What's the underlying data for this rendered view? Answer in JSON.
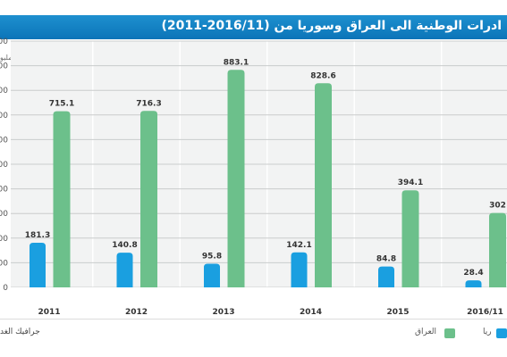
{
  "chart_data": {
    "type": "bar",
    "title": "ادرات الوطنية الى العراق وسوريا من (2016/11-2011)",
    "unit_label": "مليو",
    "categories": [
      "2011",
      "2012",
      "2013",
      "2014",
      "2015",
      "2016/11"
    ],
    "series": [
      {
        "name": "سوريا",
        "color": "#1a9fe0",
        "values": [
          181.3,
          140.8,
          95.8,
          142.1,
          84.8,
          28.4
        ],
        "labels": [
          "181.3",
          "140.8",
          "95.8",
          "142.1",
          "84.8",
          "28.4"
        ]
      },
      {
        "name": "العراق",
        "color": "#6cc08b",
        "values": [
          715.1,
          716.3,
          883.1,
          828.6,
          394.1,
          302
        ],
        "labels": [
          "715.1",
          "716.3",
          "883.1",
          "828.6",
          "394.1",
          "302"
        ]
      }
    ],
    "ylim": [
      0,
      1000
    ],
    "ytick_step": 100,
    "grid": true
  },
  "legend": {
    "syria_label": "ريا",
    "iraq_label": "العراق"
  },
  "credit": "جرافيك الغد"
}
